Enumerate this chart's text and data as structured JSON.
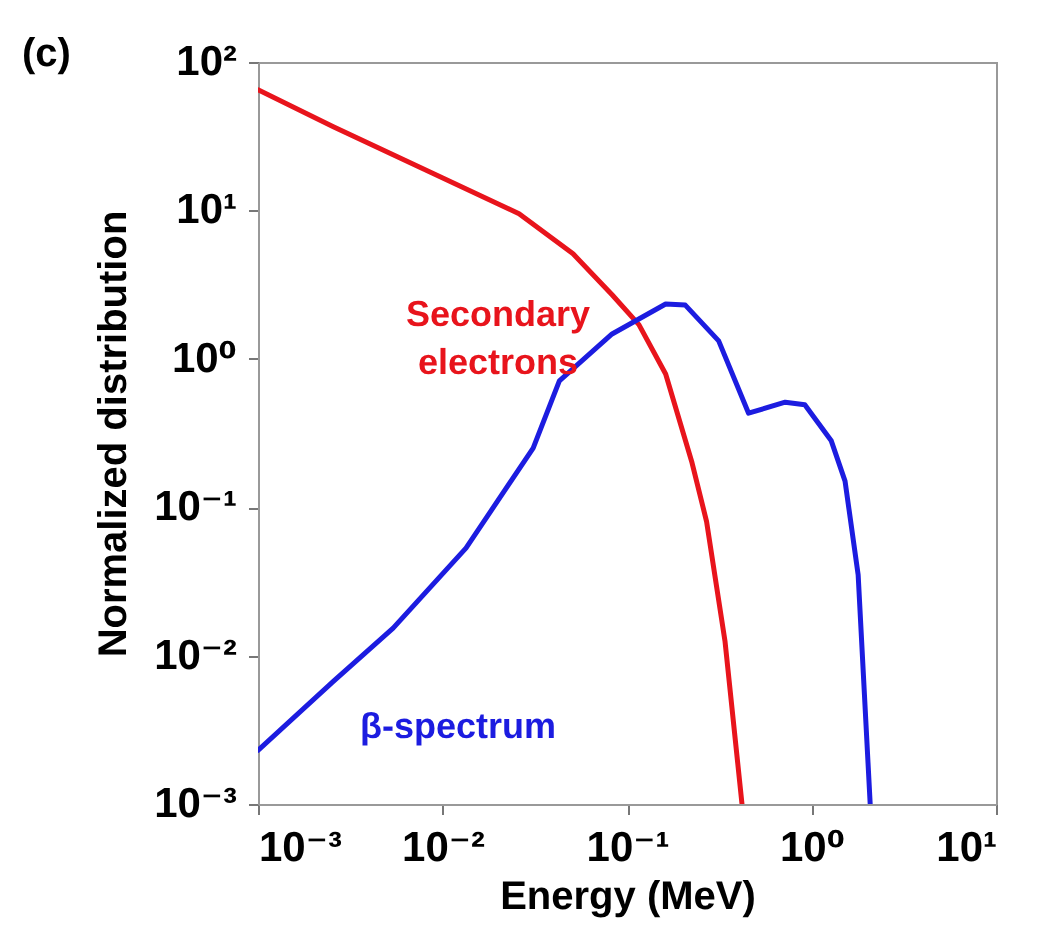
{
  "chart_data": {
    "type": "line",
    "xlabel": "Energy (MeV)",
    "ylabel": "Normalized distribution",
    "log": "xy",
    "xlim": [
      0.001,
      10
    ],
    "ylim": [
      0.001,
      100
    ],
    "xticks": [
      {
        "value": 0.001,
        "label": "10⁻³"
      },
      {
        "value": 0.01,
        "label": "10⁻²"
      },
      {
        "value": 0.1,
        "label": "10⁻¹"
      },
      {
        "value": 1,
        "label": "10⁰"
      },
      {
        "value": 10,
        "label": "10¹"
      }
    ],
    "yticks": [
      {
        "value": 0.001,
        "label": "10⁻³"
      },
      {
        "value": 0.01,
        "label": "10⁻²"
      },
      {
        "value": 0.1,
        "label": "10⁻¹"
      },
      {
        "value": 1,
        "label": "10⁰"
      },
      {
        "value": 10,
        "label": "10¹"
      },
      {
        "value": 100,
        "label": "10²"
      }
    ],
    "grid": false,
    "legend": false,
    "marker": "none",
    "line_style": "solid",
    "annotations": [
      "(c)"
    ],
    "series": [
      {
        "name": "Secondary electrons",
        "color": "#e8141c",
        "x": [
          0.001,
          0.00256,
          0.0089,
          0.026,
          0.051,
          0.083,
          0.116,
          0.162,
          0.225,
          0.27,
          0.34,
          0.42
        ],
        "values": [
          65,
          36.6,
          17.7,
          9.5,
          5.1,
          2.7,
          1.7,
          0.79,
          0.2,
          0.08,
          0.0124,
          0.001
        ]
      },
      {
        "name": "β-spectrum",
        "color": "#1c1ce0",
        "x": [
          0.001,
          0.00256,
          0.0054,
          0.0134,
          0.031,
          0.043,
          0.083,
          0.162,
          0.207,
          0.314,
          0.456,
          0.72,
          0.92,
          1.28,
          1.52,
          1.79,
          2.08
        ],
        "values": [
          0.0023,
          0.0067,
          0.0153,
          0.053,
          0.25,
          0.71,
          1.47,
          2.34,
          2.3,
          1.32,
          0.43,
          0.51,
          0.49,
          0.28,
          0.15,
          0.035,
          0.001
        ]
      }
    ]
  }
}
